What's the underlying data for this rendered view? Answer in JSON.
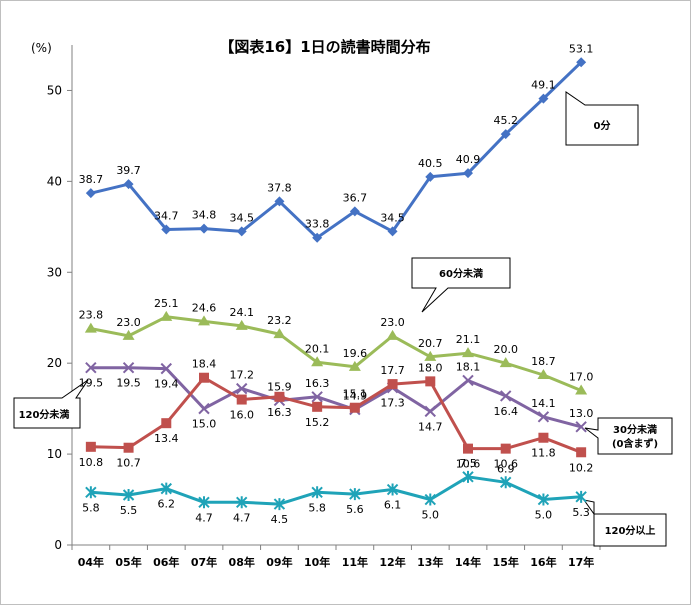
{
  "chart_data": {
    "type": "line",
    "title": "【図表16】1日の読書時間分布",
    "yunit": "(%)",
    "ylim": [
      0,
      55
    ],
    "yticks": [
      0,
      10,
      20,
      30,
      40,
      50
    ],
    "categories": [
      "04年",
      "05年",
      "06年",
      "07年",
      "08年",
      "09年",
      "10年",
      "11年",
      "12年",
      "13年",
      "14年",
      "15年",
      "16年",
      "17年"
    ],
    "series": [
      {
        "key": "zero",
        "name": "0分",
        "color": "#4472c4",
        "marker": "diamond",
        "values": [
          38.7,
          39.7,
          34.7,
          34.8,
          34.5,
          37.8,
          33.8,
          36.7,
          34.5,
          40.5,
          40.9,
          45.2,
          49.1,
          53.1
        ]
      },
      {
        "key": "m60",
        "name": "60分未満",
        "color": "#9bbb59",
        "marker": "triangle",
        "values": [
          23.8,
          23.0,
          25.1,
          24.6,
          24.1,
          23.2,
          20.1,
          19.6,
          23.0,
          20.7,
          21.1,
          20.0,
          18.7,
          17.0
        ]
      },
      {
        "key": "m120",
        "name": "120分未満",
        "color": "#8064a2",
        "marker": "x",
        "values": [
          19.5,
          19.5,
          19.4,
          15.0,
          17.2,
          15.9,
          16.3,
          14.9,
          17.3,
          14.7,
          18.1,
          16.4,
          14.1,
          13.0
        ]
      },
      {
        "key": "m30",
        "name": "30分未満(0含まず)",
        "color": "#c0504d",
        "marker": "square",
        "values": [
          10.8,
          10.7,
          13.4,
          18.4,
          16.0,
          16.3,
          15.2,
          15.1,
          17.7,
          18.0,
          10.6,
          10.6,
          11.8,
          10.2
        ]
      },
      {
        "key": "over120",
        "name": "120分以上",
        "color": "#1fa3b8",
        "marker": "star",
        "values": [
          5.8,
          5.5,
          6.2,
          4.7,
          4.7,
          4.5,
          5.8,
          5.6,
          6.1,
          5.0,
          7.5,
          6.9,
          5.0,
          5.3
        ]
      }
    ],
    "legend": {
      "zero": "0分",
      "m60": "60分未満",
      "m120": "120分未満",
      "m30_line1": "30分未満",
      "m30_line2": "(0含まず)",
      "over120": "120分以上"
    },
    "grid": false,
    "legend_placement": "callouts"
  }
}
